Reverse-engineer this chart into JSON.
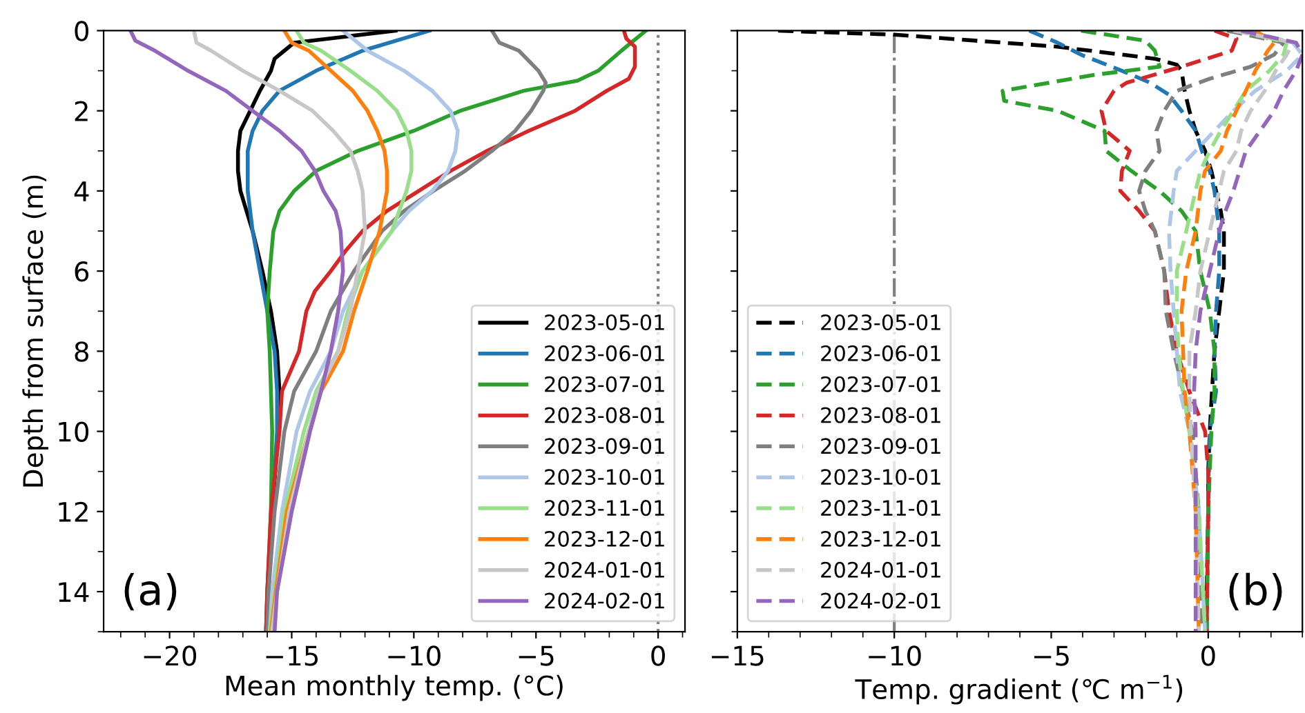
{
  "chart_data": [
    {
      "type": "line",
      "xlabel": "Mean monthly temp. (°C)",
      "ylabel": "Depth from surface (m)",
      "xlim": [
        -22.7,
        1.1
      ],
      "ylim": [
        15,
        0
      ],
      "xticks": [
        {
          "value": -20,
          "label": "−20"
        },
        {
          "value": -15,
          "label": "−15"
        },
        {
          "value": -10,
          "label": "−10"
        },
        {
          "value": -5,
          "label": "−5"
        },
        0
      ],
      "yticks": [
        0,
        2,
        4,
        6,
        8,
        10,
        12,
        14
      ],
      "legend": "bottom right",
      "line_style": "solid",
      "annotations": [
        "(a)"
      ],
      "ref_lines": [
        {
          "axis": "x",
          "value": 0,
          "color": "#808080",
          "line_style": "dotted"
        }
      ],
      "series": [
        {
          "name": "2023-05-01",
          "color": "#000000",
          "x": [
            -10.75,
            -14.9,
            -15.3,
            -15.7,
            -15.85,
            -16.3,
            -16.7,
            -17.1,
            -17.2,
            -17.2,
            -17.1,
            -16.6,
            -16.2,
            -15.85,
            -15.6,
            -15.5,
            -15.55,
            -15.8,
            -15.95,
            -16.0
          ],
          "values": [
            0,
            0.3,
            0.5,
            0.7,
            1,
            1.5,
            2,
            2.5,
            3,
            3.5,
            4,
            5,
            6,
            7,
            8,
            9,
            10,
            12,
            14,
            15
          ]
        },
        {
          "name": "2023-06-01",
          "color": "#1f77b4",
          "x": [
            -9.35,
            -12.1,
            -14.0,
            -15.5,
            -16.2,
            -16.6,
            -16.8,
            -16.8,
            -16.6,
            -16.3,
            -16.0,
            -15.7,
            -15.6,
            -15.6,
            -15.8,
            -16.0,
            -16.05
          ],
          "values": [
            0,
            0.5,
            1,
            1.5,
            2,
            2.5,
            3,
            4,
            5,
            6,
            7,
            8,
            9,
            10,
            12,
            14,
            15
          ]
        },
        {
          "name": "2023-07-01",
          "color": "#2ca02c",
          "x": [
            -0.5,
            -1.5,
            -2.45,
            -3.3,
            -5.5,
            -8.1,
            -10.0,
            -12.3,
            -14.0,
            -14.9,
            -15.5,
            -15.75,
            -15.9,
            -16.0,
            -15.9,
            -15.85,
            -15.8,
            -15.85,
            -16.0,
            -16.05
          ],
          "values": [
            0,
            0.5,
            1,
            1.25,
            1.5,
            2,
            2.5,
            3,
            3.5,
            4,
            4.5,
            5,
            6,
            7,
            8,
            9,
            10,
            12,
            14,
            15
          ]
        },
        {
          "name": "2023-08-01",
          "color": "#d62728",
          "x": [
            -1.4,
            -1.3,
            -0.95,
            -0.95,
            -1.2,
            -2.1,
            -3.4,
            -5.3,
            -7.0,
            -8.5,
            -9.8,
            -11.1,
            -12.1,
            -12.8,
            -13.4,
            -14.05,
            -14.4,
            -14.7,
            -15.4,
            -15.5,
            -15.85,
            -16.0,
            -16.05
          ],
          "values": [
            0,
            0.2,
            0.4,
            0.9,
            1.2,
            1.5,
            2,
            2.5,
            3,
            3.5,
            4,
            4.5,
            5,
            5.5,
            6,
            6.5,
            7,
            8,
            9,
            10,
            12,
            14,
            15
          ]
        },
        {
          "name": "2023-09-01",
          "color": "#7f7f7f",
          "x": [
            -6.8,
            -6.5,
            -5.7,
            -4.9,
            -4.6,
            -4.7,
            -5.2,
            -5.85,
            -6.8,
            -7.9,
            -9.2,
            -10.4,
            -11.3,
            -12.45,
            -13.4,
            -14.0,
            -14.9,
            -15.3,
            -15.7,
            -15.95,
            -16.0
          ],
          "values": [
            0,
            0.3,
            0.5,
            1,
            1.3,
            1.5,
            2,
            2.5,
            3,
            3.5,
            4,
            4.5,
            5,
            6,
            7,
            8,
            9,
            10,
            12,
            14,
            15
          ]
        },
        {
          "name": "2023-10-01",
          "color": "#aec7e8",
          "x": [
            -12.9,
            -11.9,
            -10.4,
            -9.25,
            -8.5,
            -8.2,
            -8.3,
            -8.6,
            -9.25,
            -10.2,
            -10.9,
            -12.1,
            -12.9,
            -13.4,
            -14.25,
            -14.8,
            -15.4,
            -15.8,
            -15.9
          ],
          "values": [
            0,
            0.5,
            1,
            1.5,
            2,
            2.5,
            3,
            3.5,
            4,
            4.5,
            5,
            6,
            7,
            8,
            9,
            10,
            12,
            14,
            15
          ]
        },
        {
          "name": "2023-11-01",
          "color": "#98df8a",
          "x": [
            -14.8,
            -14.5,
            -13.8,
            -12.6,
            -11.5,
            -10.7,
            -10.3,
            -10.1,
            -10.1,
            -10.3,
            -10.6,
            -10.9,
            -12.1,
            -12.7,
            -13.1,
            -14.0,
            -14.5,
            -15.3,
            -15.7,
            -15.9
          ],
          "values": [
            0,
            0.3,
            0.5,
            1,
            1.5,
            2,
            2.5,
            3,
            3.5,
            4,
            4.5,
            5,
            6,
            7,
            8,
            9,
            10,
            12,
            14,
            15
          ]
        },
        {
          "name": "2023-12-01",
          "color": "#ff7f0e",
          "x": [
            -15.3,
            -15.0,
            -14.3,
            -13.4,
            -12.5,
            -11.9,
            -11.5,
            -11.2,
            -11.1,
            -11.1,
            -11.4,
            -11.9,
            -12.45,
            -12.9,
            -13.8,
            -14.3,
            -15.2,
            -15.65,
            -15.85
          ],
          "values": [
            0,
            0.3,
            0.5,
            1,
            1.5,
            2,
            2.5,
            3,
            3.5,
            4,
            5,
            6,
            7,
            8,
            9,
            10,
            12,
            14,
            15
          ]
        },
        {
          "name": "2024-01-01",
          "color": "#c7c7c7",
          "x": [
            -19.0,
            -18.9,
            -18.3,
            -17.0,
            -15.5,
            -14.15,
            -13.3,
            -12.6,
            -12.3,
            -12.1,
            -12.0,
            -12.3,
            -12.6,
            -13.1,
            -13.9,
            -14.3,
            -15.1,
            -15.6,
            -15.8
          ],
          "values": [
            0,
            0.3,
            0.5,
            1,
            1.5,
            2,
            2.5,
            3,
            3.5,
            4,
            5,
            6,
            7,
            8,
            9,
            10,
            12,
            14,
            15
          ]
        },
        {
          "name": "2024-02-01",
          "color": "#9467bd",
          "x": [
            -21.6,
            -21.4,
            -20.6,
            -19.25,
            -17.7,
            -16.6,
            -15.5,
            -14.6,
            -14.05,
            -13.7,
            -13.2,
            -13.0,
            -12.9,
            -13.1,
            -13.4,
            -13.8,
            -14.25,
            -15.0,
            -15.6,
            -15.7
          ],
          "values": [
            0,
            0.25,
            0.5,
            1,
            1.5,
            2,
            2.5,
            3,
            3.5,
            4,
            4.5,
            5,
            6,
            7,
            8,
            9,
            10,
            12,
            14,
            15
          ]
        }
      ]
    },
    {
      "type": "line",
      "xlabel": "Temp. gradient (℃ m$^{−1}$)",
      "xlim": [
        -15,
        3
      ],
      "ylim": [
        15,
        0
      ],
      "xticks": [
        {
          "value": -15,
          "label": "−15"
        },
        {
          "value": -10,
          "label": "−10"
        },
        {
          "value": -5,
          "label": "−5"
        },
        0
      ],
      "yticks": [
        {
          "value": 0,
          "label": null
        },
        {
          "value": 2,
          "label": null
        },
        {
          "value": 4,
          "label": null
        },
        {
          "value": 6,
          "label": null
        },
        {
          "value": 8,
          "label": null
        },
        {
          "value": 10,
          "label": null
        },
        {
          "value": 12,
          "label": null
        },
        {
          "value": 14,
          "label": null
        }
      ],
      "tick_labels": "x",
      "legend": "bottom left",
      "line_style": "dashed",
      "annotations": [
        "(b)"
      ],
      "ref_lines": [
        {
          "axis": "x",
          "value": -10,
          "color": "#808080",
          "line_style": "dashdot"
        }
      ],
      "series": [
        {
          "name": "2023-05-01",
          "color": "#000000",
          "x": [
            -13.7,
            -10.0,
            -4.8,
            -1.7,
            -1.0,
            -0.85,
            -0.75,
            -0.6,
            -0.4,
            -0.1,
            0.1,
            0.25,
            0.4,
            0.5,
            0.5,
            0.35,
            0.2,
            0.12,
            0.05,
            0.0,
            0.0,
            -0.05,
            -0.05
          ],
          "values": [
            0,
            0.1,
            0.4,
            0.7,
            0.85,
            1,
            1.5,
            2,
            2.5,
            3,
            3.5,
            4,
            4.5,
            5,
            6,
            7,
            8,
            9,
            10,
            11,
            12,
            14,
            15
          ]
        },
        {
          "name": "2023-06-01",
          "color": "#1f77b4",
          "x": [
            -5.7,
            -4.8,
            -4.05,
            -2.75,
            -1.85,
            -1.25,
            -0.85,
            -0.4,
            -0.2,
            0.05,
            0.2,
            0.35,
            0.35,
            0.25,
            0.2,
            0.25,
            0.05,
            0.0,
            -0.05
          ],
          "values": [
            0,
            0.3,
            0.6,
            1,
            1.3,
            1.6,
            2,
            2.5,
            3,
            3.5,
            4,
            5,
            6,
            7,
            8,
            9,
            10,
            12,
            15
          ]
        },
        {
          "name": "2023-07-01",
          "color": "#2ca02c",
          "x": [
            -4.05,
            -2.0,
            -1.7,
            -1.55,
            -3.6,
            -6.55,
            -6.5,
            -4.8,
            -3.3,
            -3.25,
            -2.45,
            -1.55,
            -0.85,
            -0.4,
            -0.25,
            0.05,
            0.2,
            0.2,
            0.1,
            0.0,
            -0.05
          ],
          "values": [
            0,
            0.25,
            0.5,
            0.9,
            1.1,
            1.5,
            1.75,
            2,
            2.5,
            3,
            3.5,
            4,
            4.5,
            5,
            6,
            7,
            8,
            9,
            10,
            12,
            15
          ]
        },
        {
          "name": "2023-08-01",
          "color": "#d62728",
          "x": [
            0.2,
            0.9,
            0.75,
            -0.85,
            -2.6,
            -3.0,
            -3.4,
            -3.25,
            -2.5,
            -2.75,
            -2.8,
            -2.2,
            -1.7,
            -1.4,
            -1.25,
            -1.0,
            -0.6,
            -0.1,
            0.0,
            0.0,
            -0.05
          ],
          "values": [
            0,
            0.2,
            0.5,
            0.9,
            1.3,
            1.5,
            2,
            2.5,
            3,
            3.5,
            4,
            4.5,
            5,
            6,
            7,
            8,
            9,
            10,
            11,
            12,
            15
          ]
        },
        {
          "name": "2023-09-01",
          "color": "#7f7f7f",
          "x": [
            0.6,
            2.4,
            2.1,
            1.35,
            0.05,
            -1.0,
            -1.4,
            -1.65,
            -1.55,
            -2.0,
            -2.2,
            -2.0,
            -1.7,
            -1.4,
            -1.35,
            -1.1,
            -0.8,
            -0.5,
            -0.3,
            -0.2
          ],
          "values": [
            0,
            0.3,
            0.6,
            0.9,
            1.2,
            1.5,
            2,
            2.5,
            3,
            3.5,
            4,
            4.5,
            5,
            6,
            7,
            8,
            9,
            10,
            12,
            15
          ]
        },
        {
          "name": "2023-10-01",
          "color": "#aec7e8",
          "x": [
            1.2,
            2.7,
            3.0,
            2.5,
            1.5,
            0.8,
            0.2,
            -0.4,
            -1.0,
            -1.1,
            -1.25,
            -1.2,
            -1.1,
            -1.0,
            -0.9,
            -0.6,
            -0.3,
            -0.1
          ],
          "values": [
            0,
            0.3,
            0.6,
            1,
            1.5,
            2,
            2.5,
            3,
            3.5,
            4,
            5,
            6,
            7,
            8,
            9,
            10,
            12,
            15
          ]
        },
        {
          "name": "2023-11-01",
          "color": "#98df8a",
          "x": [
            1.05,
            2.5,
            2.4,
            1.95,
            1.2,
            0.8,
            0.4,
            0.05,
            -0.25,
            -0.4,
            -0.7,
            -1.0,
            -1.0,
            -0.95,
            -0.8,
            -0.6,
            -0.3,
            -0.1
          ],
          "values": [
            0,
            0.3,
            0.6,
            1,
            1.5,
            2,
            2.5,
            3,
            3.5,
            4,
            5,
            6,
            7,
            8,
            9,
            10,
            12,
            15
          ]
        },
        {
          "name": "2023-12-01",
          "color": "#ff7f0e",
          "x": [
            1.5,
            2.1,
            1.9,
            1.5,
            1.2,
            0.9,
            0.6,
            0.4,
            -0.1,
            -0.25,
            -0.4,
            -0.7,
            -0.85,
            -0.8,
            -0.75,
            -0.6,
            -0.4,
            -0.3
          ],
          "values": [
            0,
            0.3,
            0.5,
            1,
            1.5,
            2,
            2.5,
            3,
            3.5,
            4,
            5,
            6,
            7,
            8,
            9,
            10,
            12,
            15
          ]
        },
        {
          "name": "2024-01-01",
          "color": "#c7c7c7",
          "x": [
            0.8,
            2.7,
            2.5,
            2.15,
            1.8,
            1.35,
            1.05,
            0.9,
            0.5,
            0.35,
            0.05,
            -0.25,
            -0.4,
            -0.6,
            -0.6,
            -0.55,
            -0.4,
            -0.3
          ],
          "values": [
            0,
            0.3,
            0.6,
            1,
            1.5,
            2,
            2.5,
            3,
            3.5,
            4,
            5,
            6,
            7,
            8,
            9,
            10,
            12,
            15
          ]
        },
        {
          "name": "2024-02-01",
          "color": "#9467bd",
          "x": [
            1.05,
            2.8,
            3.0,
            2.8,
            2.4,
            2.1,
            1.65,
            1.2,
            1.0,
            0.8,
            0.55,
            0.35,
            0.05,
            -0.25,
            -0.4,
            -0.45,
            -0.4,
            -0.4,
            -0.4
          ],
          "values": [
            0,
            0.3,
            0.6,
            1,
            1.5,
            2,
            2.5,
            3,
            3.5,
            4,
            4.5,
            5,
            6,
            7,
            8,
            9,
            10,
            12,
            15
          ]
        }
      ]
    }
  ]
}
